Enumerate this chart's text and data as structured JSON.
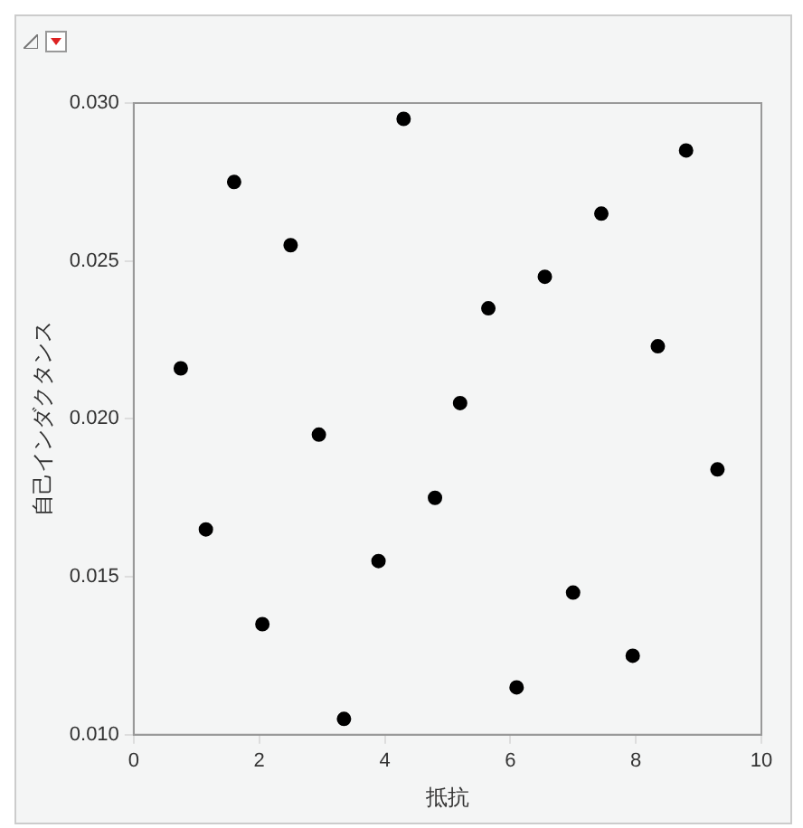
{
  "chart_data": {
    "type": "scatter",
    "xlabel": "抵抗",
    "ylabel": "自己インダクタンス",
    "x": [
      0.75,
      1.15,
      1.6,
      2.05,
      2.5,
      2.95,
      3.35,
      3.9,
      4.3,
      4.8,
      5.2,
      5.65,
      6.1,
      6.55,
      7.0,
      7.45,
      7.95,
      8.35,
      8.8,
      9.3
    ],
    "series": [
      {
        "color": "#000000",
        "values": [
          0.0216,
          0.0165,
          0.0275,
          0.0135,
          0.0255,
          0.0195,
          0.0105,
          0.0155,
          0.0295,
          0.0175,
          0.0205,
          0.0235,
          0.0115,
          0.0245,
          0.0145,
          0.0265,
          0.0125,
          0.0223,
          0.0285,
          0.0184
        ]
      }
    ],
    "xlim": [
      0,
      10
    ],
    "xticks": [
      0,
      2,
      4,
      6,
      8,
      10
    ],
    "ylim": [
      0.01,
      0.03
    ],
    "yticks": [
      {
        "value": 0.01,
        "label": "0.010"
      },
      {
        "value": 0.015,
        "label": "0.015"
      },
      {
        "value": 0.02,
        "label": "0.020"
      },
      {
        "value": 0.025,
        "label": "0.025"
      },
      {
        "value": 0.03,
        "label": "0.030"
      }
    ],
    "grid": false,
    "legend": false,
    "marker": "circle"
  }
}
